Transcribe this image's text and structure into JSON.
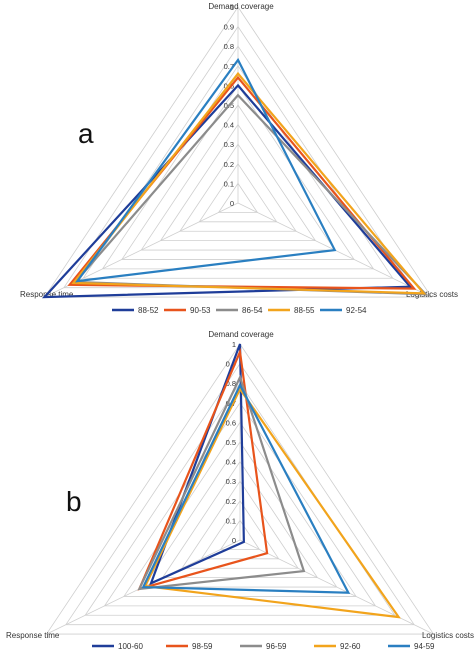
{
  "colors": {
    "s1": "#1f3d99",
    "s2": "#e8541c",
    "s3": "#8c8c8c",
    "s4": "#f2a41c",
    "s5": "#2a7fc1",
    "grid": "#cfcfcf"
  },
  "chart_data": [
    {
      "type": "radar",
      "panel_label": "a",
      "axes": [
        "Demand coverage",
        "Logistics costs",
        "Response time"
      ],
      "ticks": [
        "0",
        "0.1",
        "0.2",
        "0.3",
        "0.4",
        "0.5",
        "0.6",
        "0.7",
        "0.8",
        "0.9",
        "1"
      ],
      "range": [
        0,
        1
      ],
      "legend_position": "bottom",
      "series": [
        {
          "name": "88-52",
          "values": [
            0.6,
            0.89,
            1.0
          ]
        },
        {
          "name": "90-53",
          "values": [
            0.64,
            0.91,
            0.87
          ]
        },
        {
          "name": "86-54",
          "values": [
            0.55,
            0.97,
            0.84
          ]
        },
        {
          "name": "88-55",
          "values": [
            0.66,
            0.96,
            0.85
          ]
        },
        {
          "name": "92-54",
          "values": [
            0.73,
            0.5,
            0.83
          ]
        }
      ]
    },
    {
      "type": "radar",
      "panel_label": "b",
      "axes": [
        "Demand coverage",
        "Logistics costs",
        "Response time"
      ],
      "ticks": [
        "0",
        "0.1",
        "0.2",
        "0.3",
        "0.4",
        "0.5",
        "0.6",
        "0.7",
        "0.8",
        "0.9",
        "1"
      ],
      "range": [
        0,
        1
      ],
      "legend_position": "bottom",
      "series": [
        {
          "name": "100-60",
          "values": [
            1.0,
            0.02,
            0.46
          ]
        },
        {
          "name": "98-59",
          "values": [
            0.96,
            0.14,
            0.52
          ]
        },
        {
          "name": "96-59",
          "values": [
            0.83,
            0.33,
            0.52
          ]
        },
        {
          "name": "92-60",
          "values": [
            0.77,
            0.82,
            0.49
          ]
        },
        {
          "name": "94-59",
          "values": [
            0.79,
            0.56,
            0.5
          ]
        }
      ]
    }
  ]
}
